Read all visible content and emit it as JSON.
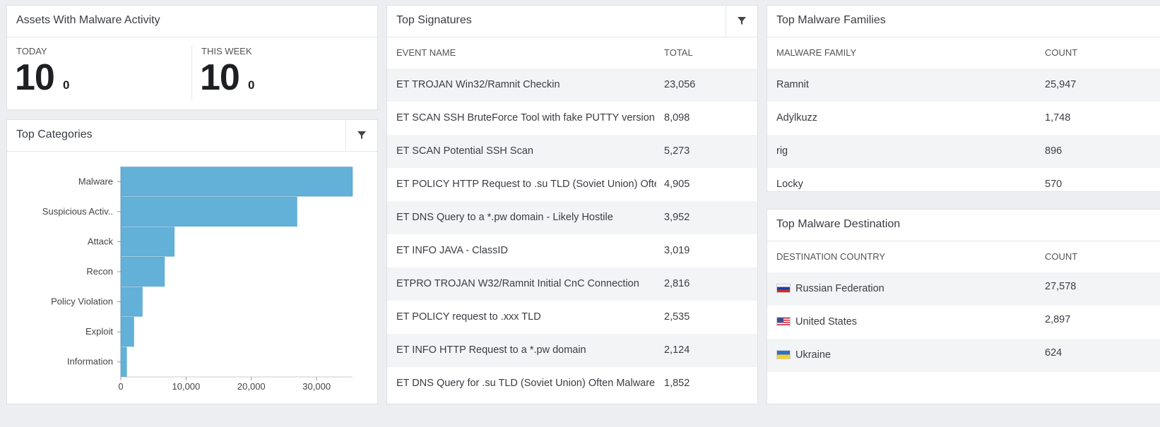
{
  "assets": {
    "title": "Assets With Malware Activity",
    "today_label": "TODAY",
    "today_value": "10",
    "today_sub": "0",
    "week_label": "THIS WEEK",
    "week_value": "10",
    "week_sub": "0"
  },
  "categories": {
    "title": "Top Categories",
    "chart_data": {
      "type": "bar",
      "orientation": "horizontal",
      "categories": [
        "Malware",
        "Suspicious Activ..",
        "Attack",
        "Recon",
        "Policy Violation",
        "Exploit",
        "Information"
      ],
      "values": [
        35500,
        27000,
        8200,
        6700,
        3300,
        2000,
        900
      ],
      "xlim": [
        0,
        35500
      ],
      "xticks": [
        "0",
        "10,000",
        "20,000",
        "30,000"
      ],
      "bar_color": "#63b0d8"
    }
  },
  "signatures": {
    "title": "Top Signatures",
    "columns": [
      "EVENT NAME",
      "TOTAL"
    ],
    "rows": [
      {
        "name": "ET TROJAN Win32/Ramnit Checkin",
        "total": "23,056"
      },
      {
        "name": "ET SCAN SSH BruteForce Tool with fake PUTTY version",
        "total": "8,098"
      },
      {
        "name": "ET SCAN Potential SSH Scan",
        "total": "5,273"
      },
      {
        "name": "ET POLICY HTTP Request to .su TLD (Soviet Union) Often Malware Related",
        "total": "4,905"
      },
      {
        "name": "ET DNS Query to a *.pw domain - Likely Hostile",
        "total": "3,952"
      },
      {
        "name": "ET INFO JAVA - ClassID",
        "total": "3,019"
      },
      {
        "name": "ETPRO TROJAN W32/Ramnit Initial CnC Connection",
        "total": "2,816"
      },
      {
        "name": "ET POLICY request to .xxx TLD",
        "total": "2,535"
      },
      {
        "name": "ET INFO HTTP Request to a *.pw domain",
        "total": "2,124"
      },
      {
        "name": "ET DNS Query for .su TLD (Soviet Union) Often Malware Related",
        "total": "1,852"
      }
    ]
  },
  "families": {
    "title": "Top Malware Families",
    "columns": [
      "MALWARE FAMILY",
      "COUNT"
    ],
    "rows": [
      {
        "name": "Ramnit",
        "count": "25,947"
      },
      {
        "name": "Adylkuzz",
        "count": "1,748"
      },
      {
        "name": "rig",
        "count": "896"
      },
      {
        "name": "Locky",
        "count": "570"
      }
    ]
  },
  "destinations": {
    "title": "Top Malware Destination",
    "columns": [
      "DESTINATION COUNTRY",
      "COUNT"
    ],
    "rows": [
      {
        "country": "Russian Federation",
        "count": "27,578",
        "flag": "russia-flag-icon"
      },
      {
        "country": "United States",
        "count": "2,897",
        "flag": "usa-flag-icon"
      },
      {
        "country": "Ukraine",
        "count": "624",
        "flag": "ukraine-flag-icon"
      }
    ]
  },
  "icons": {
    "filter": "filter-icon"
  }
}
